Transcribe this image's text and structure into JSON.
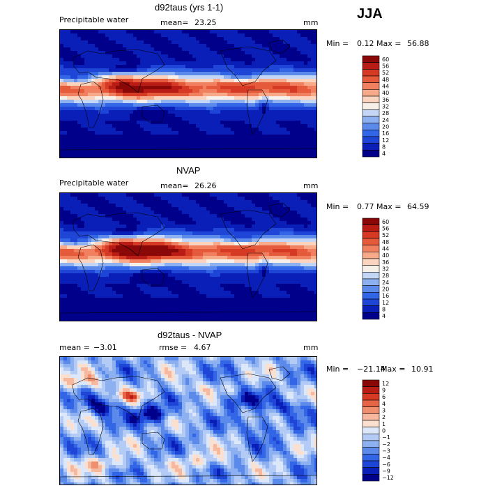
{
  "season": "JJA",
  "colors": {
    "abs_scale": [
      "#00008b",
      "#0a1fb8",
      "#1f45d6",
      "#3366e6",
      "#5c8aeb",
      "#8db0f0",
      "#c4d6f5",
      "#f7f0e8",
      "#fbd4c0",
      "#f7aa8a",
      "#f08060",
      "#e65a3c",
      "#d63a25",
      "#b81c14",
      "#8a0808"
    ],
    "diff_scale": [
      "#00008b",
      "#0a1fb8",
      "#1f45d6",
      "#3366e6",
      "#5c8aeb",
      "#8db0f0",
      "#b3cbf5",
      "#dde7fa",
      "#fbe0d0",
      "#f7b8a0",
      "#f08e70",
      "#e66548",
      "#d63a25",
      "#b81c14",
      "#8a0808"
    ]
  },
  "panels": [
    {
      "title": "d92taus (yrs 1-1)",
      "field": "Precipitable water",
      "mean_label": "mean=",
      "mean": "23.25",
      "units": "mm",
      "min_label": "Min =",
      "min": "0.12",
      "max_label": "Max =",
      "max": "56.88"
    },
    {
      "title": "NVAP",
      "field": "Precipitable water",
      "mean_label": "mean=",
      "mean": "26.26",
      "units": "mm",
      "min_label": "Min =",
      "min": "0.77",
      "max_label": "Max =",
      "max": "64.59"
    },
    {
      "title": "d92taus - NVAP",
      "mean_label": "mean =",
      "mean": "−3.01",
      "rmse_label": "rmse =",
      "rmse": "4.67",
      "units": "mm",
      "min_label": "Min =",
      "min": "−21.14",
      "max_label": "Max =",
      "max": "10.91"
    }
  ],
  "chart_data": [
    {
      "type": "heatmap",
      "title": "d92taus (yrs 1-1)",
      "subtitle": "Precipitable water",
      "units": "mm",
      "mean": 23.25,
      "min": 0.12,
      "max": 56.88,
      "colorbar_levels": [
        60,
        56,
        52,
        48,
        44,
        40,
        36,
        32,
        28,
        24,
        20,
        16,
        12,
        8,
        4
      ]
    },
    {
      "type": "heatmap",
      "title": "NVAP",
      "subtitle": "Precipitable water",
      "units": "mm",
      "mean": 26.26,
      "min": 0.77,
      "max": 64.59,
      "colorbar_levels": [
        60,
        56,
        52,
        48,
        44,
        40,
        36,
        32,
        28,
        24,
        20,
        16,
        12,
        8,
        4
      ]
    },
    {
      "type": "heatmap",
      "title": "d92taus - NVAP",
      "units": "mm",
      "mean": -3.01,
      "rmse": 4.67,
      "min": -21.14,
      "max": 10.91,
      "colorbar_levels": [
        "12",
        "9",
        "6",
        "4",
        "3",
        "2",
        "1",
        "0",
        "−1",
        "−2",
        "−3",
        "−4",
        "−6",
        "−9",
        "−12"
      ]
    }
  ]
}
